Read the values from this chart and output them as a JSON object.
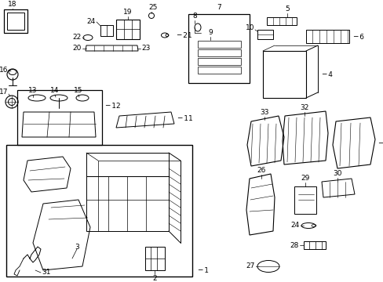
{
  "background_color": "#ffffff",
  "line_color": "#000000",
  "fig_width": 4.89,
  "fig_height": 3.6,
  "dpi": 100,
  "font_size": 6.5
}
